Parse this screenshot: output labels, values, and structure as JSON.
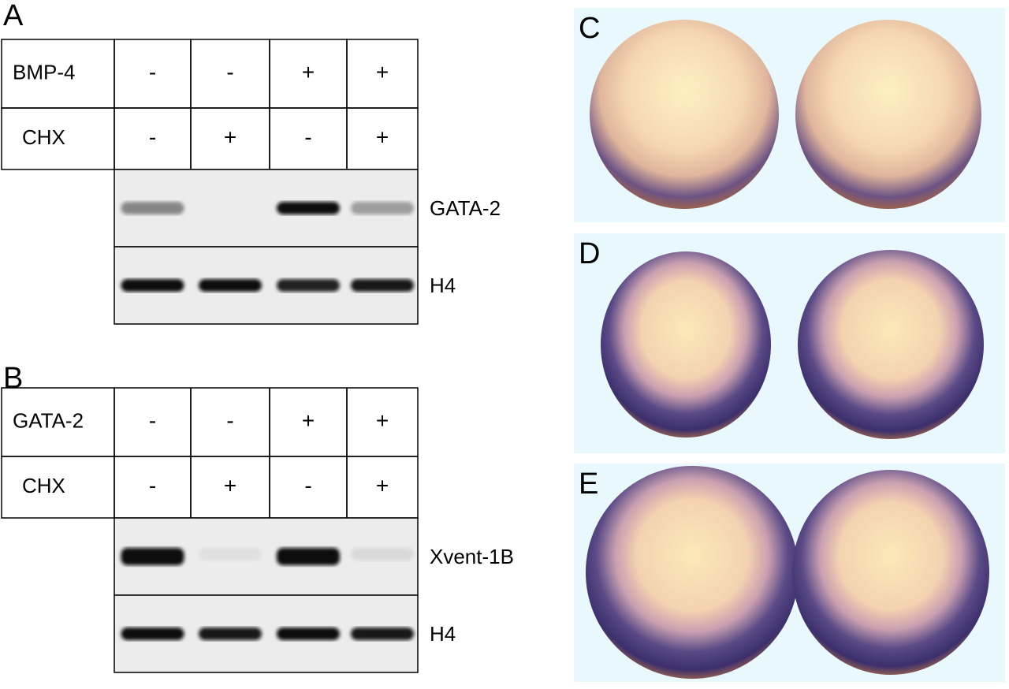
{
  "panels": [
    {
      "label": "A",
      "rows": [
        {
          "label": "BMP-4",
          "cells": [
            "-",
            "-",
            "+",
            "+"
          ]
        },
        {
          "label": "CHX",
          "cells": [
            "-",
            "+",
            "-",
            "+"
          ]
        }
      ],
      "gels": [
        {
          "label": "GATA-2"
        },
        {
          "label": "H4"
        }
      ]
    },
    {
      "label": "B",
      "rows": [
        {
          "label": "GATA-2",
          "cells": [
            "-",
            "-",
            "+",
            "+"
          ]
        },
        {
          "label": "CHX",
          "cells": [
            "-",
            "+",
            "-",
            "+"
          ]
        }
      ],
      "gels": [
        {
          "label": "Xvent-1B"
        },
        {
          "label": "H4"
        }
      ]
    }
  ],
  "images": [
    {
      "label": "C"
    },
    {
      "label": "D"
    },
    {
      "label": "E"
    }
  ]
}
